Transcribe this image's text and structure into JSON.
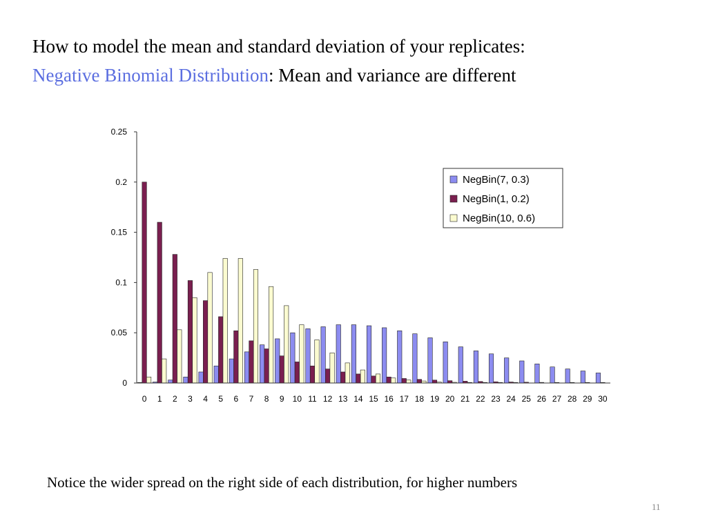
{
  "slide": {
    "title_line1": "How to model the mean and standard deviation of your replicates:",
    "title_highlight": "Negative Binomial Distribution",
    "title_rest": ":  Mean and variance are different",
    "note": "Notice the wider spread on the right side of each distribution, for higher numbers",
    "page_number": "11",
    "highlight_color": "#5b6ee0"
  },
  "chart_data": {
    "type": "bar",
    "title": "",
    "xlabel": "",
    "ylabel": "",
    "ylim": [
      0,
      0.25
    ],
    "yticks": [
      "0",
      "0.05",
      "0.1",
      "0.15",
      "0.2",
      "0.25"
    ],
    "grid": false,
    "legend_position": "top-right",
    "categories": [
      "0",
      "1",
      "2",
      "3",
      "4",
      "5",
      "6",
      "7",
      "8",
      "9",
      "10",
      "11",
      "12",
      "13",
      "14",
      "15",
      "16",
      "17",
      "18",
      "19",
      "20",
      "21",
      "22",
      "23",
      "24",
      "25",
      "26",
      "27",
      "28",
      "29",
      "30"
    ],
    "series": [
      {
        "name": "NegBin(7, 0.3)",
        "color": "#8c8cf0",
        "values": [
          0.0002,
          0.001,
          0.003,
          0.006,
          0.011,
          0.017,
          0.024,
          0.031,
          0.038,
          0.044,
          0.05,
          0.054,
          0.056,
          0.058,
          0.058,
          0.057,
          0.055,
          0.052,
          0.049,
          0.045,
          0.041,
          0.036,
          0.032,
          0.029,
          0.025,
          0.022,
          0.019,
          0.016,
          0.014,
          0.012,
          0.01
        ]
      },
      {
        "name": "NegBin(1, 0.2)",
        "color": "#7a1f4f",
        "values": [
          0.2,
          0.16,
          0.128,
          0.102,
          0.082,
          0.066,
          0.052,
          0.042,
          0.034,
          0.027,
          0.021,
          0.017,
          0.014,
          0.011,
          0.009,
          0.007,
          0.006,
          0.0045,
          0.0036,
          0.0029,
          0.0023,
          0.0018,
          0.0015,
          0.0012,
          0.001,
          0.0008,
          0.0006,
          0.0005,
          0.0004,
          0.0003,
          0.0002
        ]
      },
      {
        "name": "NegBin(10, 0.6)",
        "color": "#fbfbd0",
        "values": [
          0.006,
          0.024,
          0.053,
          0.085,
          0.11,
          0.124,
          0.124,
          0.113,
          0.096,
          0.077,
          0.058,
          0.043,
          0.03,
          0.02,
          0.013,
          0.009,
          0.005,
          0.003,
          0.002,
          0.001,
          0.0007,
          0.0004,
          0.0002,
          0.0001,
          0.0001,
          0,
          0,
          0,
          0,
          0,
          0
        ]
      }
    ]
  }
}
